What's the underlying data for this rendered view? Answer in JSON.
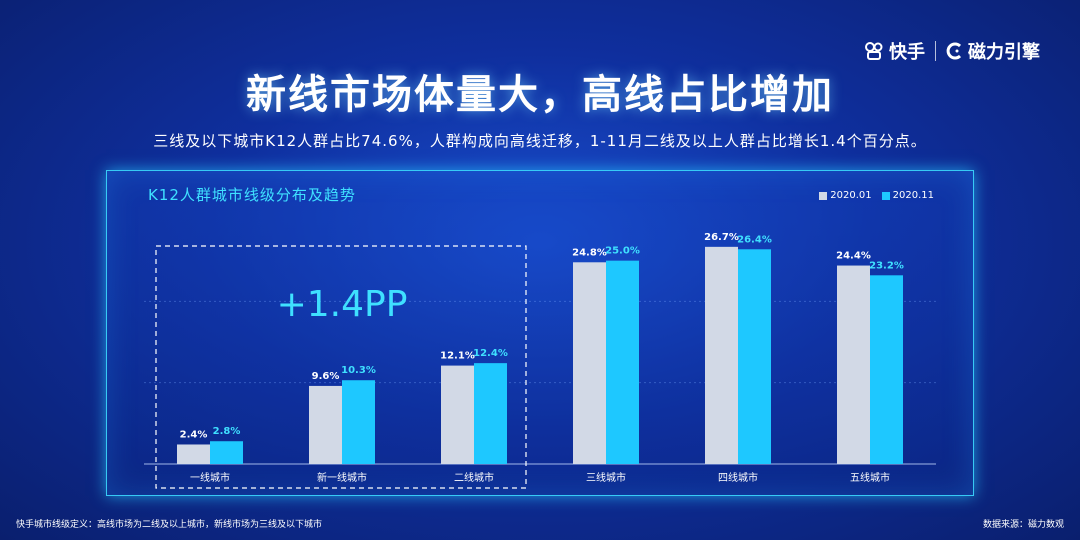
{
  "brand": {
    "kuaishou": "快手",
    "cili": "磁力引擎"
  },
  "header": {
    "title": "新线市场体量大，高线占比增加",
    "subtitle": "三线及以下城市K12人群占比74.6%，人群构成向高线迁移，1-11月二线及以上人群占比增长1.4个百分点。"
  },
  "footer": {
    "left": "快手城市线级定义：高线市场为二线及以上城市，新线市场为三线及以下城市",
    "right": "数据来源：磁力数观"
  },
  "colors": {
    "series1": "#d2d9e6",
    "series2": "#1ec8ff",
    "accent": "#3fe0ff"
  },
  "chart_data": {
    "type": "bar",
    "title": "K12人群城市线级分布及趋势",
    "categories": [
      "一线城市",
      "新一线城市",
      "二线城市",
      "三线城市",
      "四线城市",
      "五线城市"
    ],
    "series": [
      {
        "name": "2020.01",
        "values": [
          2.4,
          9.6,
          12.1,
          24.8,
          26.7,
          24.4
        ],
        "labels": [
          "2.4%",
          "9.6%",
          "12.1%",
          "24.8%",
          "26.7%",
          "24.4%"
        ]
      },
      {
        "name": "2020.11",
        "values": [
          2.8,
          10.3,
          12.4,
          25.0,
          26.4,
          23.2
        ],
        "labels": [
          "2.8%",
          "10.3%",
          "12.4%",
          "25.0%",
          "26.4%",
          "23.2%"
        ]
      }
    ],
    "ylim": [
      0,
      30
    ],
    "grid": true,
    "annotation": "+1.4PP",
    "legend_position": "top-right"
  }
}
